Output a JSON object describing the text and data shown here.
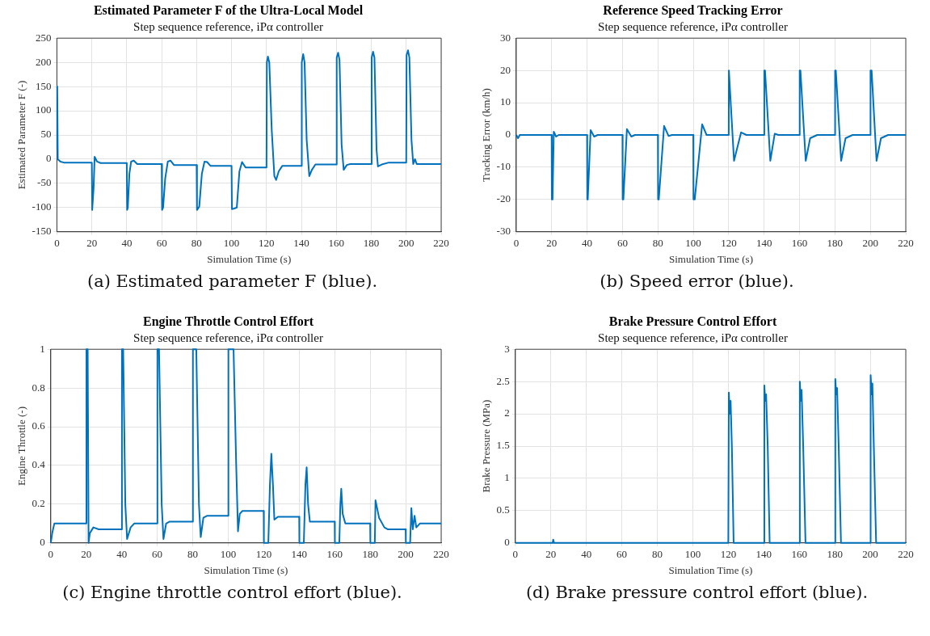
{
  "chart_data": [
    {
      "type": "line",
      "title": "Estimated Parameter F of the Ultra-Local Model",
      "subtitle": "Step sequence reference, iPα controller",
      "xlabel": "Simulation Time (s)",
      "ylabel": "Estimated Parameter F (-)",
      "annotations": [
        "(a) Estimated parameter F (blue)."
      ],
      "xlim": [
        0,
        220
      ],
      "xticks": [
        0,
        20,
        40,
        60,
        80,
        100,
        120,
        140,
        160,
        180,
        200,
        220
      ],
      "ylim": [
        -150,
        250
      ],
      "yticks": [
        -150,
        -100,
        -50,
        0,
        50,
        100,
        150,
        200,
        250
      ],
      "grid": true,
      "series": [
        {
          "color": "#0072bd",
          "x": [
            0,
            0.2,
            0.5,
            2,
            4,
            20,
            20.2,
            20.6,
            21,
            21.6,
            23,
            25,
            40,
            40.2,
            40.6,
            41.5,
            42.5,
            44,
            46,
            60,
            60.2,
            60.8,
            62,
            63.5,
            65,
            67,
            80,
            80.2,
            81.5,
            83,
            84.5,
            86,
            88,
            100,
            100.2,
            101.5,
            103,
            104.5,
            106,
            108,
            120,
            120.2,
            120.8,
            121.6,
            123,
            124.5,
            125.5,
            127,
            129,
            140,
            140.2,
            141,
            141.8,
            143,
            144.5,
            146,
            148,
            160,
            160.2,
            161,
            161.8,
            163,
            164.2,
            166,
            168,
            180,
            180.2,
            181,
            181.8,
            183,
            183.8,
            186,
            190,
            200,
            200.2,
            201,
            201.8,
            203,
            204,
            205,
            206,
            210,
            220
          ],
          "values": [
            20,
            150,
            0,
            -5,
            -7,
            -7,
            -105,
            -105,
            -60,
            5,
            -5,
            -8,
            -8,
            -105,
            -100,
            -30,
            -5,
            -3,
            -10,
            -10,
            -105,
            -100,
            -40,
            -5,
            -3,
            -12,
            -12,
            -105,
            -98,
            -30,
            -5,
            -6,
            -14,
            -14,
            -103,
            -102,
            -100,
            -25,
            -6,
            -17,
            -17,
            200,
            212,
            200,
            60,
            -35,
            -43,
            -25,
            -14,
            -14,
            200,
            217,
            200,
            40,
            -35,
            -22,
            -11,
            -11,
            210,
            220,
            205,
            30,
            -22,
            -12,
            -10,
            -10,
            210,
            222,
            210,
            20,
            -15,
            -11,
            -7,
            -7,
            215,
            225,
            210,
            40,
            -10,
            0,
            -10,
            -10,
            -10
          ]
        }
      ]
    },
    {
      "type": "line",
      "title": "Reference Speed Tracking Error",
      "subtitle": "Step sequence reference, iPα controller",
      "xlabel": "Simulation Time (s)",
      "ylabel": "Tracking Error (km/h)",
      "annotations": [
        "(b) Speed error (blue)."
      ],
      "xlim": [
        0,
        220
      ],
      "xticks": [
        0,
        20,
        40,
        60,
        80,
        100,
        120,
        140,
        160,
        180,
        200,
        220
      ],
      "ylim": [
        -30,
        30
      ],
      "yticks": [
        -30,
        -20,
        -10,
        0,
        10,
        20,
        30
      ],
      "grid": true,
      "series": [
        {
          "color": "#0072bd",
          "x": [
            0,
            1,
            2,
            20,
            20.1,
            20.5,
            21.2,
            22.5,
            24,
            40,
            40.1,
            40.4,
            42,
            44,
            46,
            60,
            60.1,
            60.5,
            62.5,
            65,
            67,
            80,
            80.1,
            80.5,
            83.5,
            86,
            88,
            100,
            100.1,
            100.8,
            105,
            107.5,
            120,
            120.1,
            120.5,
            123,
            127,
            130,
            140,
            140.1,
            140.5,
            143.5,
            146,
            148,
            160,
            160.1,
            160.5,
            163.5,
            166,
            170,
            180,
            180.1,
            180.5,
            183.5,
            186,
            190,
            200,
            200.1,
            200.7,
            203.5,
            206,
            210,
            220
          ],
          "values": [
            0,
            -1,
            0,
            0,
            -20,
            -20,
            1,
            -0.5,
            0,
            0,
            -20,
            -20,
            1.5,
            -0.5,
            0,
            0,
            -20,
            -20,
            1.8,
            -0.5,
            0,
            0,
            -20,
            -20,
            2.8,
            -0.3,
            0,
            0,
            -20,
            -20,
            3.3,
            0,
            0,
            20,
            20,
            -8,
            0.8,
            0,
            0,
            20,
            20,
            -8,
            0.4,
            0,
            0,
            20,
            20,
            -8,
            -1,
            0,
            0,
            20,
            20,
            -8,
            -1,
            0,
            0,
            20,
            20,
            -8,
            -1,
            0,
            0
          ]
        }
      ]
    },
    {
      "type": "line",
      "title": "Engine Throttle Control Effort",
      "subtitle": "Step sequence reference, iPα controller",
      "xlabel": "Simulation Time (s)",
      "ylabel": "Engine Throttle (-)",
      "annotations": [
        "(c) Engine throttle control effort (blue)."
      ],
      "xlim": [
        0,
        220
      ],
      "xticks": [
        0,
        20,
        40,
        60,
        80,
        100,
        120,
        140,
        160,
        180,
        200,
        220
      ],
      "ylim": [
        0,
        1
      ],
      "yticks": [
        0,
        0.2,
        0.4,
        0.6,
        0.8,
        1
      ],
      "grid": true,
      "series": [
        {
          "color": "#0072bd",
          "x": [
            0,
            0.8,
            2,
            20,
            20.1,
            20.8,
            21.3,
            22,
            24,
            27,
            40,
            40.1,
            40.8,
            42,
            43,
            45,
            47,
            60,
            60.1,
            61,
            62.5,
            63.5,
            65,
            67,
            80,
            80.1,
            82,
            83.5,
            84.5,
            86,
            88,
            100,
            100.1,
            103,
            104.5,
            105.5,
            106.5,
            108,
            120,
            120.1,
            122.6,
            123.5,
            124.3,
            125.2,
            126,
            128,
            140,
            140.1,
            142.6,
            143.5,
            144.2,
            145,
            146,
            160,
            160.1,
            162.6,
            163.2,
            163.7,
            164.5,
            166,
            180,
            180.1,
            182.6,
            183,
            185,
            188,
            190,
            200,
            200.1,
            202.5,
            203.2,
            204,
            205,
            206,
            208,
            220
          ],
          "values": [
            0,
            0.05,
            0.1,
            0.1,
            1,
            1,
            0,
            0.05,
            0.08,
            0.07,
            0.07,
            1,
            1,
            0.2,
            0.02,
            0.08,
            0.1,
            0.1,
            1,
            1,
            0.2,
            0.02,
            0.1,
            0.11,
            0.11,
            1,
            1,
            0.2,
            0.03,
            0.13,
            0.14,
            0.14,
            1,
            1,
            0.4,
            0.06,
            0.15,
            0.165,
            0.165,
            0,
            0,
            0.3,
            0.46,
            0.3,
            0.12,
            0.135,
            0.135,
            0,
            0,
            0.3,
            0.39,
            0.2,
            0.11,
            0.11,
            0,
            0,
            0.2,
            0.28,
            0.15,
            0.1,
            0.1,
            0,
            0,
            0.22,
            0.13,
            0.08,
            0.07,
            0.07,
            0,
            0,
            0.18,
            0.07,
            0.14,
            0.08,
            0.1,
            0.1
          ]
        }
      ]
    },
    {
      "type": "line",
      "title": "Brake Pressure Control Effort",
      "subtitle": "Step sequence reference, iPα controller",
      "xlabel": "Simulation Time (s)",
      "ylabel": "Brake Pressure (MPa)",
      "annotations": [
        "(d) Brake pressure control effort (blue)."
      ],
      "xlim": [
        0,
        220
      ],
      "xticks": [
        0,
        20,
        40,
        60,
        80,
        100,
        120,
        140,
        160,
        180,
        200,
        220
      ],
      "ylim": [
        0,
        3
      ],
      "yticks": [
        0,
        0.5,
        1,
        1.5,
        2,
        2.5,
        3
      ],
      "grid": true,
      "series": [
        {
          "color": "#0072bd",
          "x": [
            0,
            21,
            21.3,
            21.8,
            120,
            120.3,
            120.8,
            121.3,
            122,
            123,
            140,
            140.3,
            140.8,
            141.3,
            142.2,
            143.3,
            160,
            160.3,
            160.8,
            161.3,
            162.2,
            163.5,
            180,
            180.3,
            180.8,
            181.3,
            182.2,
            183.5,
            200,
            200.2,
            200.8,
            201.2,
            202,
            203.3,
            220
          ],
          "values": [
            0,
            0,
            0.05,
            0,
            0,
            2.33,
            2,
            2.2,
            1.5,
            0,
            0,
            2.44,
            2.2,
            2.3,
            1.5,
            0,
            0,
            2.5,
            2.2,
            2.37,
            1.5,
            0,
            0,
            2.54,
            2.3,
            2.4,
            1.5,
            0,
            0,
            2.6,
            2.3,
            2.47,
            1.5,
            0,
            0
          ]
        }
      ]
    }
  ]
}
